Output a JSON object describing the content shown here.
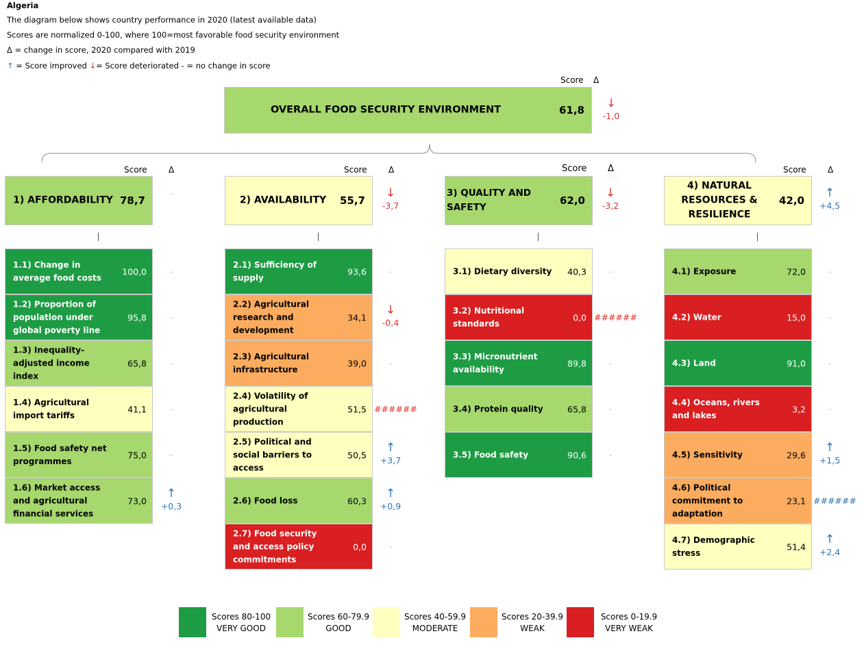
{
  "colors": {
    "very_good": "#1e9c44",
    "good": "#a6d86e",
    "moderate": "#ffffc0",
    "weak": "#fbac5e",
    "very_weak": "#d91f21",
    "improved": "#2e75b6",
    "deteriorated": "#e0312b"
  },
  "header": {
    "country": "Algeria",
    "line1": "The diagram below shows country performance in 2020 (latest available data)",
    "line2": "Scores are normalized 0-100, where 100=most favorable food security environment",
    "line3": "Δ = change in score, 2020 compared with 2019",
    "legend_up_arrow": "↑",
    "legend_up_text": " = Score improved ",
    "legend_down_arrow": "↓",
    "legend_down_text": "= Score deteriorated  - = no change in score"
  },
  "column_labels": {
    "score": "Score",
    "delta": "Δ"
  },
  "overall": {
    "label": "OVERALL FOOD SECURITY ENVIRONMENT",
    "score": "61,8",
    "arrow": "↓",
    "delta": "-1,0"
  },
  "pillars": [
    {
      "label": "1) AFFORDABILITY",
      "score": "78,7",
      "arrow": "",
      "delta": "-",
      "rating": "good",
      "items": [
        {
          "label": "1.1) Change in average food costs",
          "score": "100,0",
          "arrow": "",
          "delta": "-",
          "rating": "very_good"
        },
        {
          "label": "1.2) Proportion of population under global poverty line",
          "score": "95,8",
          "arrow": "",
          "delta": "-",
          "rating": "very_good"
        },
        {
          "label": "1.3) Inequality-adjusted income index",
          "score": "65,8",
          "arrow": "",
          "delta": "-",
          "rating": "good"
        },
        {
          "label": "1.4) Agricultural import tariffs",
          "score": "41,1",
          "arrow": "",
          "delta": "-",
          "rating": "moderate"
        },
        {
          "label": "1.5) Food safety net programmes",
          "score": "75,0",
          "arrow": "",
          "delta": "-",
          "rating": "good"
        },
        {
          "label": "1.6) Market access and agricultural financial services",
          "score": "73,0",
          "arrow": "↑",
          "delta": "+0,3",
          "rating": "good"
        }
      ]
    },
    {
      "label": "2) AVAILABILITY",
      "score": "55,7",
      "arrow": "↓",
      "delta": "-3,7",
      "rating": "moderate",
      "items": [
        {
          "label": "2.1) Sufficiency of supply",
          "score": "93,6",
          "arrow": "",
          "delta": "-",
          "rating": "very_good"
        },
        {
          "label": "2.2) Agricultural research and development",
          "score": "34,1",
          "arrow": "↓",
          "delta": "-0,4",
          "rating": "weak"
        },
        {
          "label": "2.3) Agricultural infrastructure",
          "score": "39,0",
          "arrow": "",
          "delta": "-",
          "rating": "weak"
        },
        {
          "label": "2.4) Volatility of agricultural production",
          "score": "51,5",
          "arrow": "",
          "delta": "######",
          "rating": "moderate"
        },
        {
          "label": "2.5) Political and social barriers to access",
          "score": "50,5",
          "arrow": "↑",
          "delta": "+3,7",
          "rating": "moderate"
        },
        {
          "label": "2.6) Food loss",
          "score": "60,3",
          "arrow": "↑",
          "delta": "+0,9",
          "rating": "good"
        },
        {
          "label": "2.7) Food security and access policy commitments",
          "score": "0,0",
          "arrow": "",
          "delta": "-",
          "rating": "very_weak"
        }
      ]
    },
    {
      "label": "3) QUALITY AND SAFETY",
      "score": "62,0",
      "arrow": "↓",
      "delta": "-3,2",
      "rating": "good",
      "items": [
        {
          "label": "3.1) Dietary diversity",
          "score": "40,3",
          "arrow": "",
          "delta": "-",
          "rating": "moderate"
        },
        {
          "label": "3.2) Nutritional standards",
          "score": "0,0",
          "arrow": "",
          "delta": "######",
          "rating": "very_weak"
        },
        {
          "label": "3.3) Micronutrient availability",
          "score": "89,8",
          "arrow": "",
          "delta": "-",
          "rating": "very_good"
        },
        {
          "label": "3.4) Protein quality",
          "score": "65,8",
          "arrow": "",
          "delta": "-",
          "rating": "good"
        },
        {
          "label": "3.5) Food safety",
          "score": "90,6",
          "arrow": "",
          "delta": "-",
          "rating": "very_good"
        }
      ]
    },
    {
      "label": "4) NATURAL RESOURCES & RESILIENCE",
      "score": "42,0",
      "arrow": "↑",
      "delta": "+4,5",
      "rating": "moderate",
      "items": [
        {
          "label": "4.1) Exposure",
          "score": "72,0",
          "arrow": "",
          "delta": "-",
          "rating": "good"
        },
        {
          "label": "4.2) Water",
          "score": "15,0",
          "arrow": "",
          "delta": "-",
          "rating": "very_weak"
        },
        {
          "label": "4.3) Land",
          "score": "91,0",
          "arrow": "",
          "delta": "-",
          "rating": "very_good"
        },
        {
          "label": "4.4) Oceans, rivers and lakes",
          "score": "3,2",
          "arrow": "",
          "delta": "-",
          "rating": "very_weak"
        },
        {
          "label": "4.5) Sensitivity",
          "score": "29,6",
          "arrow": "↑",
          "delta": "+1,5",
          "rating": "weak"
        },
        {
          "label": "4.6) Political commitment to adaptation",
          "score": "23,1",
          "arrow": "",
          "delta": "######",
          "rating": "weak"
        },
        {
          "label": "4.7) Demographic stress",
          "score": "51,4",
          "arrow": "↑",
          "delta": "+2,4",
          "rating": "moderate"
        }
      ]
    }
  ],
  "legend": [
    {
      "line1": "Scores 80-100",
      "line2": "VERY GOOD",
      "rating": "very_good"
    },
    {
      "line1": "Scores 60-79.9",
      "line2": "GOOD",
      "rating": "good"
    },
    {
      "line1": "Scores 40-59.9",
      "line2": "MODERATE",
      "rating": "moderate"
    },
    {
      "line1": "Scores 20-39.9",
      "line2": "WEAK",
      "rating": "weak"
    },
    {
      "line1": "Scores 0-19.9",
      "line2": "VERY WEAK",
      "rating": "very_weak"
    }
  ]
}
